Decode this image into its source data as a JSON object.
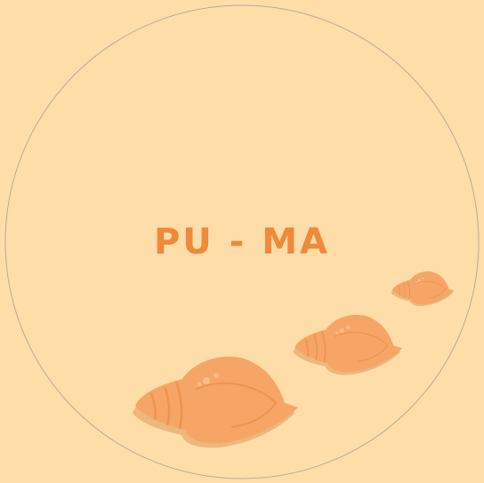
{
  "logo": {
    "text": "PU - MA"
  }
}
